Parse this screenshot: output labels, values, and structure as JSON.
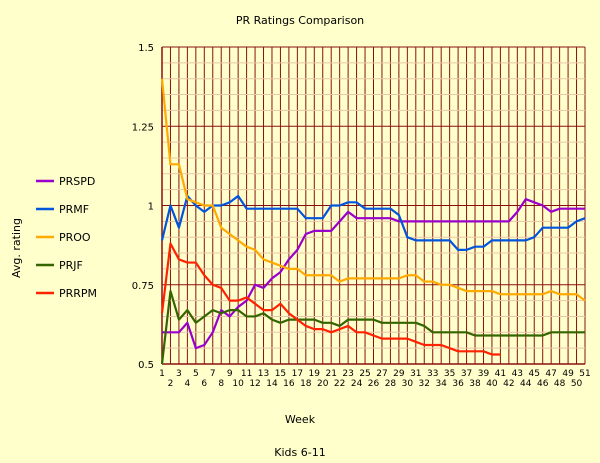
{
  "chart_data": {
    "type": "line",
    "title": "PR Ratings Comparison",
    "subtitle": "Kids 6-11",
    "xlabel": "Week",
    "ylabel": "Avg. rating",
    "ylim": [
      0.5,
      1.5
    ],
    "yticks": [
      "0.5",
      "0.75",
      "1",
      "1.25",
      "1.5"
    ],
    "ytick_values": [
      0.5,
      0.75,
      1,
      1.25,
      1.5
    ],
    "grid": true,
    "legend_position": "left",
    "x": [
      1,
      2,
      3,
      4,
      5,
      6,
      7,
      8,
      9,
      10,
      11,
      12,
      13,
      14,
      15,
      16,
      17,
      18,
      19,
      20,
      21,
      22,
      23,
      24,
      25,
      26,
      27,
      28,
      29,
      30,
      31,
      32,
      33,
      34,
      35,
      36,
      37,
      38,
      39,
      40,
      41,
      42,
      43,
      44,
      45,
      46,
      47,
      48,
      49,
      50,
      51
    ],
    "series": [
      {
        "name": "PRSPD",
        "color": "#9900cc",
        "values": [
          0.6,
          0.6,
          0.6,
          0.63,
          0.55,
          0.56,
          0.6,
          0.67,
          0.65,
          0.68,
          0.7,
          0.75,
          0.74,
          0.77,
          0.79,
          0.83,
          0.86,
          0.91,
          0.92,
          0.92,
          0.92,
          0.95,
          0.98,
          0.96,
          0.96,
          0.96,
          0.96,
          0.96,
          0.95,
          0.95,
          0.95,
          0.95,
          0.95,
          0.95,
          0.95,
          0.95,
          0.95,
          0.95,
          0.95,
          0.95,
          0.95,
          0.95,
          0.98,
          1.02,
          1.01,
          1.0,
          0.98,
          0.99,
          0.99,
          0.99,
          0.99
        ]
      },
      {
        "name": "PRMF",
        "color": "#0055dd",
        "values": [
          0.89,
          1.0,
          0.93,
          1.03,
          1.0,
          0.98,
          1.0,
          1.0,
          1.01,
          1.03,
          0.99,
          0.99,
          0.99,
          0.99,
          0.99,
          0.99,
          0.99,
          0.96,
          0.96,
          0.96,
          1.0,
          1.0,
          1.01,
          1.01,
          0.99,
          0.99,
          0.99,
          0.99,
          0.97,
          0.9,
          0.89,
          0.89,
          0.89,
          0.89,
          0.89,
          0.86,
          0.86,
          0.87,
          0.87,
          0.89,
          0.89,
          0.89,
          0.89,
          0.89,
          0.9,
          0.93,
          0.93,
          0.93,
          0.93,
          0.95,
          0.96
        ]
      },
      {
        "name": "PROO",
        "color": "#ffaa00",
        "values": [
          1.4,
          1.13,
          1.13,
          1.02,
          1.01,
          1.0,
          1.0,
          0.93,
          0.91,
          0.89,
          0.87,
          0.86,
          0.83,
          0.82,
          0.81,
          0.8,
          0.8,
          0.78,
          0.78,
          0.78,
          0.78,
          0.76,
          0.77,
          0.77,
          0.77,
          0.77,
          0.77,
          0.77,
          0.77,
          0.78,
          0.78,
          0.76,
          0.76,
          0.75,
          0.75,
          0.74,
          0.73,
          0.73,
          0.73,
          0.73,
          0.72,
          0.72,
          0.72,
          0.72,
          0.72,
          0.72,
          0.73,
          0.72,
          0.72,
          0.72,
          0.7
        ]
      },
      {
        "name": "PRJF",
        "color": "#336600",
        "values": [
          0.5,
          0.73,
          0.64,
          0.67,
          0.63,
          0.65,
          0.67,
          0.66,
          0.67,
          0.67,
          0.65,
          0.65,
          0.66,
          0.64,
          0.63,
          0.64,
          0.64,
          0.64,
          0.64,
          0.63,
          0.63,
          0.62,
          0.64,
          0.64,
          0.64,
          0.64,
          0.63,
          0.63,
          0.63,
          0.63,
          0.63,
          0.62,
          0.6,
          0.6,
          0.6,
          0.6,
          0.6,
          0.59,
          0.59,
          0.59,
          0.59,
          0.59,
          0.59,
          0.59,
          0.59,
          0.59,
          0.6,
          0.6,
          0.6,
          0.6,
          0.6
        ]
      },
      {
        "name": "PRRPM",
        "color": "#ff2200",
        "values": [
          0.66,
          0.88,
          0.83,
          0.82,
          0.82,
          0.78,
          0.75,
          0.74,
          0.7,
          0.7,
          0.71,
          0.69,
          0.67,
          0.67,
          0.69,
          0.66,
          0.64,
          0.62,
          0.61,
          0.61,
          0.6,
          0.61,
          0.62,
          0.6,
          0.6,
          0.59,
          0.58,
          0.58,
          0.58,
          0.58,
          0.57,
          0.56,
          0.56,
          0.56,
          0.55,
          0.54,
          0.54,
          0.54,
          0.54,
          0.53,
          0.53,
          null,
          null,
          null,
          null,
          null,
          null,
          null,
          null,
          null,
          null
        ]
      }
    ]
  }
}
